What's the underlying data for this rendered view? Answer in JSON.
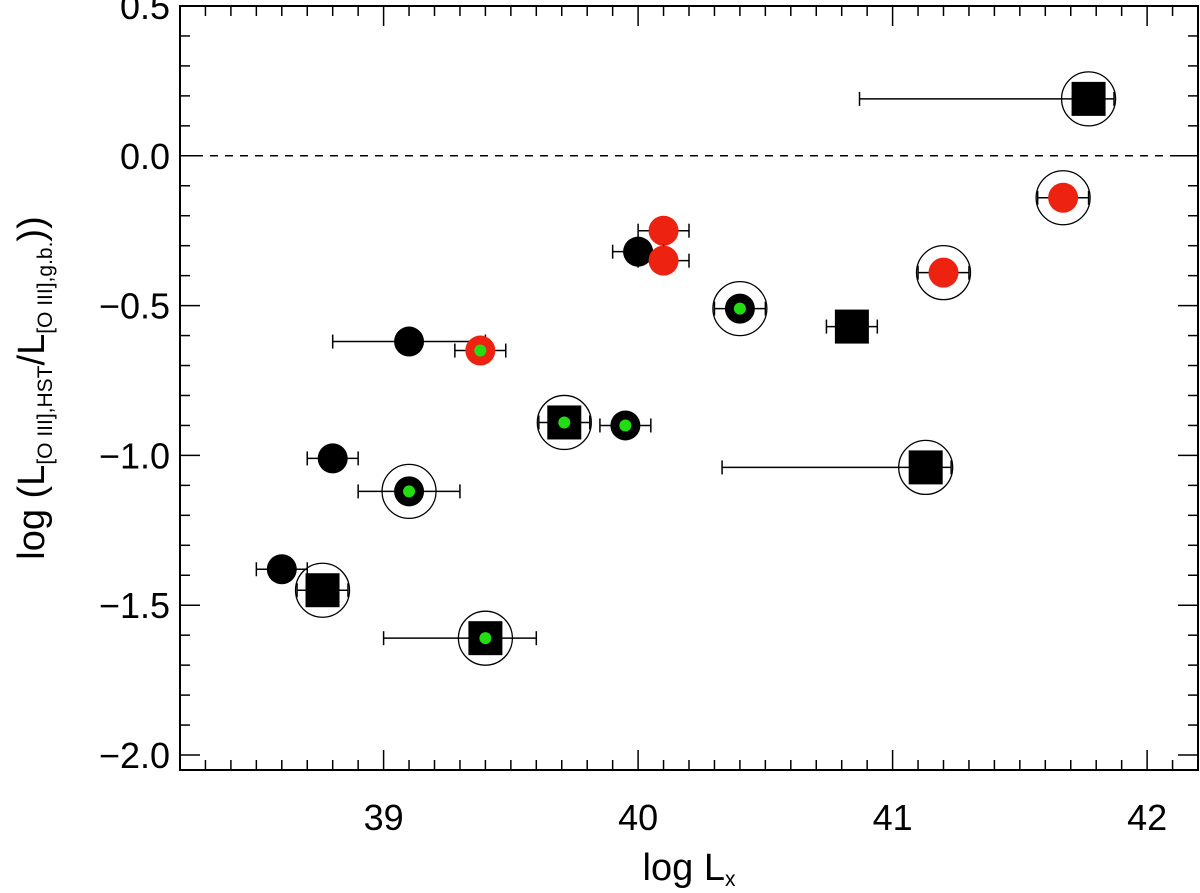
{
  "chart_data": {
    "type": "scatter",
    "xlabel": {
      "main": "log L",
      "sub": "x"
    },
    "ylabel": {
      "prefix": "log (L",
      "sub1": "[O III],HST",
      "slash": "/L",
      "sub2": "[O III],g.b.",
      "suffix": "))"
    },
    "xlim": [
      38.2,
      42.2
    ],
    "ylim": [
      -2.05,
      0.5
    ],
    "x_ticks": [
      39,
      40,
      41,
      42
    ],
    "y_ticks": [
      0.5,
      0.0,
      -0.5,
      -1.0,
      -1.5,
      -2.0
    ],
    "x_tick_labels": [
      "39",
      "40",
      "41",
      "42"
    ],
    "y_tick_labels": [
      "0.5",
      "0.0",
      "−0.5",
      "−1.0",
      "−1.5",
      "−2.0"
    ],
    "x_minor_step": 0.1,
    "y_minor_step": 0.1,
    "reference_line": {
      "y": 0.0,
      "style": "dashed"
    },
    "colors": {
      "black": "#000000",
      "red": "#ee2211",
      "green": "#22dd11"
    },
    "points": [
      {
        "x": 41.77,
        "y": 0.19,
        "marker": "square",
        "fill": "black",
        "ring": true,
        "err_lo": 40.87,
        "err_hi": 41.87
      },
      {
        "x": 41.67,
        "y": -0.14,
        "marker": "circle",
        "fill": "red",
        "ring": true,
        "err_lo": 41.57,
        "err_hi": 41.77
      },
      {
        "x": 40.1,
        "y": -0.25,
        "marker": "circle",
        "fill": "red",
        "ring": false,
        "err_lo": 40.0,
        "err_hi": 40.2
      },
      {
        "x": 40.0,
        "y": -0.32,
        "marker": "circle",
        "fill": "black",
        "ring": false,
        "err_lo": 39.9,
        "err_hi": 40.1
      },
      {
        "x": 40.1,
        "y": -0.35,
        "marker": "circle",
        "fill": "red",
        "ring": false,
        "err_lo": 40.0,
        "err_hi": 40.2
      },
      {
        "x": 41.2,
        "y": -0.39,
        "marker": "circle",
        "fill": "red",
        "ring": true,
        "err_lo": 41.1,
        "err_hi": 41.3
      },
      {
        "x": 40.4,
        "y": -0.51,
        "marker": "circle",
        "fill": "black",
        "center": "green",
        "ring": true,
        "err_lo": 40.3,
        "err_hi": 40.5
      },
      {
        "x": 40.84,
        "y": -0.57,
        "marker": "square",
        "fill": "black",
        "ring": false,
        "err_lo": 40.74,
        "err_hi": 40.94
      },
      {
        "x": 39.1,
        "y": -0.62,
        "marker": "circle",
        "fill": "black",
        "ring": false,
        "err_lo": 38.8,
        "err_hi": 39.4
      },
      {
        "x": 39.38,
        "y": -0.65,
        "marker": "circle",
        "fill": "red",
        "center": "green",
        "ring": false,
        "err_lo": 39.28,
        "err_hi": 39.48
      },
      {
        "x": 39.71,
        "y": -0.89,
        "marker": "square",
        "fill": "black",
        "center": "green",
        "ring": true,
        "err_lo": 39.61,
        "err_hi": 39.81
      },
      {
        "x": 39.95,
        "y": -0.9,
        "marker": "circle",
        "fill": "black",
        "center": "green",
        "ring": false,
        "err_lo": 39.85,
        "err_hi": 40.05
      },
      {
        "x": 38.8,
        "y": -1.01,
        "marker": "circle",
        "fill": "black",
        "ring": false,
        "err_lo": 38.7,
        "err_hi": 38.9
      },
      {
        "x": 41.13,
        "y": -1.04,
        "marker": "square",
        "fill": "black",
        "ring": true,
        "err_lo": 40.33,
        "err_hi": 41.23
      },
      {
        "x": 39.1,
        "y": -1.12,
        "marker": "circle",
        "fill": "black",
        "center": "green",
        "ring": true,
        "err_lo": 38.9,
        "err_hi": 39.3
      },
      {
        "x": 38.6,
        "y": -1.38,
        "marker": "circle",
        "fill": "black",
        "ring": false,
        "err_lo": 38.5,
        "err_hi": 38.7
      },
      {
        "x": 38.76,
        "y": -1.45,
        "marker": "square",
        "fill": "black",
        "ring": true,
        "err_lo": 38.66,
        "err_hi": 38.86
      },
      {
        "x": 39.4,
        "y": -1.61,
        "marker": "square",
        "fill": "black",
        "center": "green",
        "ring": true,
        "err_lo": 39.0,
        "err_hi": 39.6
      }
    ]
  }
}
